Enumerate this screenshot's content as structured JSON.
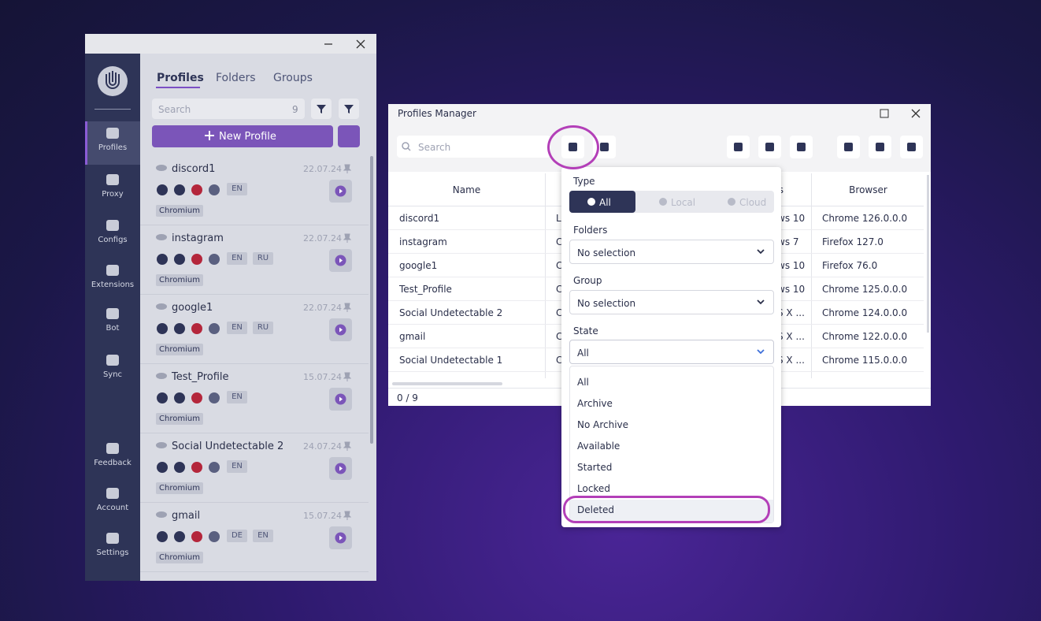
{
  "sidebar": {
    "items": [
      "Profiles",
      "Proxy",
      "Configs",
      "Extensions",
      "Bot",
      "Sync",
      "Feedback",
      "Account",
      "Settings"
    ]
  },
  "profiles_panel": {
    "tabs": [
      "Profiles",
      "Folders",
      "Groups"
    ],
    "search_placeholder": "Search",
    "count": "9",
    "new_profile": "New Profile",
    "profiles": [
      {
        "name": "discord1",
        "date": "22.07.24",
        "languages": [
          "EN"
        ],
        "browser": "Chromium"
      },
      {
        "name": "instagram",
        "date": "22.07.24",
        "languages": [
          "EN",
          "RU"
        ],
        "browser": "Chromium"
      },
      {
        "name": "google1",
        "date": "22.07.24",
        "languages": [
          "EN",
          "RU"
        ],
        "browser": "Chromium"
      },
      {
        "name": "Test_Profile",
        "date": "15.07.24",
        "languages": [
          "EN"
        ],
        "browser": "Chromium"
      },
      {
        "name": "Social Undetectable 2",
        "date": "24.07.24",
        "languages": [
          "EN"
        ],
        "browser": "Chromium"
      },
      {
        "name": "gmail",
        "date": "15.07.24",
        "languages": [
          "DE",
          "EN"
        ],
        "browser": "Chromium"
      }
    ]
  },
  "manager": {
    "title": "Profiles Manager",
    "search_placeholder": "Search",
    "columns": [
      "Name",
      "s",
      "Browser"
    ],
    "rows": [
      [
        "discord1",
        "L",
        "ws 10",
        "Chrome 126.0.0.0"
      ],
      [
        "instagram",
        "C",
        "ws 7",
        "Firefox 127.0"
      ],
      [
        "google1",
        "C",
        "ws 10",
        "Firefox 76.0"
      ],
      [
        "Test_Profile",
        "C",
        "ws 10",
        "Chrome 125.0.0.0"
      ],
      [
        "Social Undetectable 2",
        "C",
        "S X ...",
        "Chrome 124.0.0.0"
      ],
      [
        "gmail",
        "C",
        "S X ...",
        "Chrome 122.0.0.0"
      ],
      [
        "Social Undetectable 1",
        "C",
        "S X ...",
        "Chrome 115.0.0.0"
      ]
    ],
    "footer": "0 / 9"
  },
  "filter": {
    "type_label": "Type",
    "type_options": [
      "All",
      "Local",
      "Cloud"
    ],
    "folders_label": "Folders",
    "folders_value": "No selection",
    "group_label": "Group",
    "group_value": "No selection",
    "state_label": "State",
    "state_value": "All",
    "state_options": [
      "All",
      "Archive",
      "No Archive",
      "Available",
      "Started",
      "Locked",
      "Deleted"
    ]
  }
}
